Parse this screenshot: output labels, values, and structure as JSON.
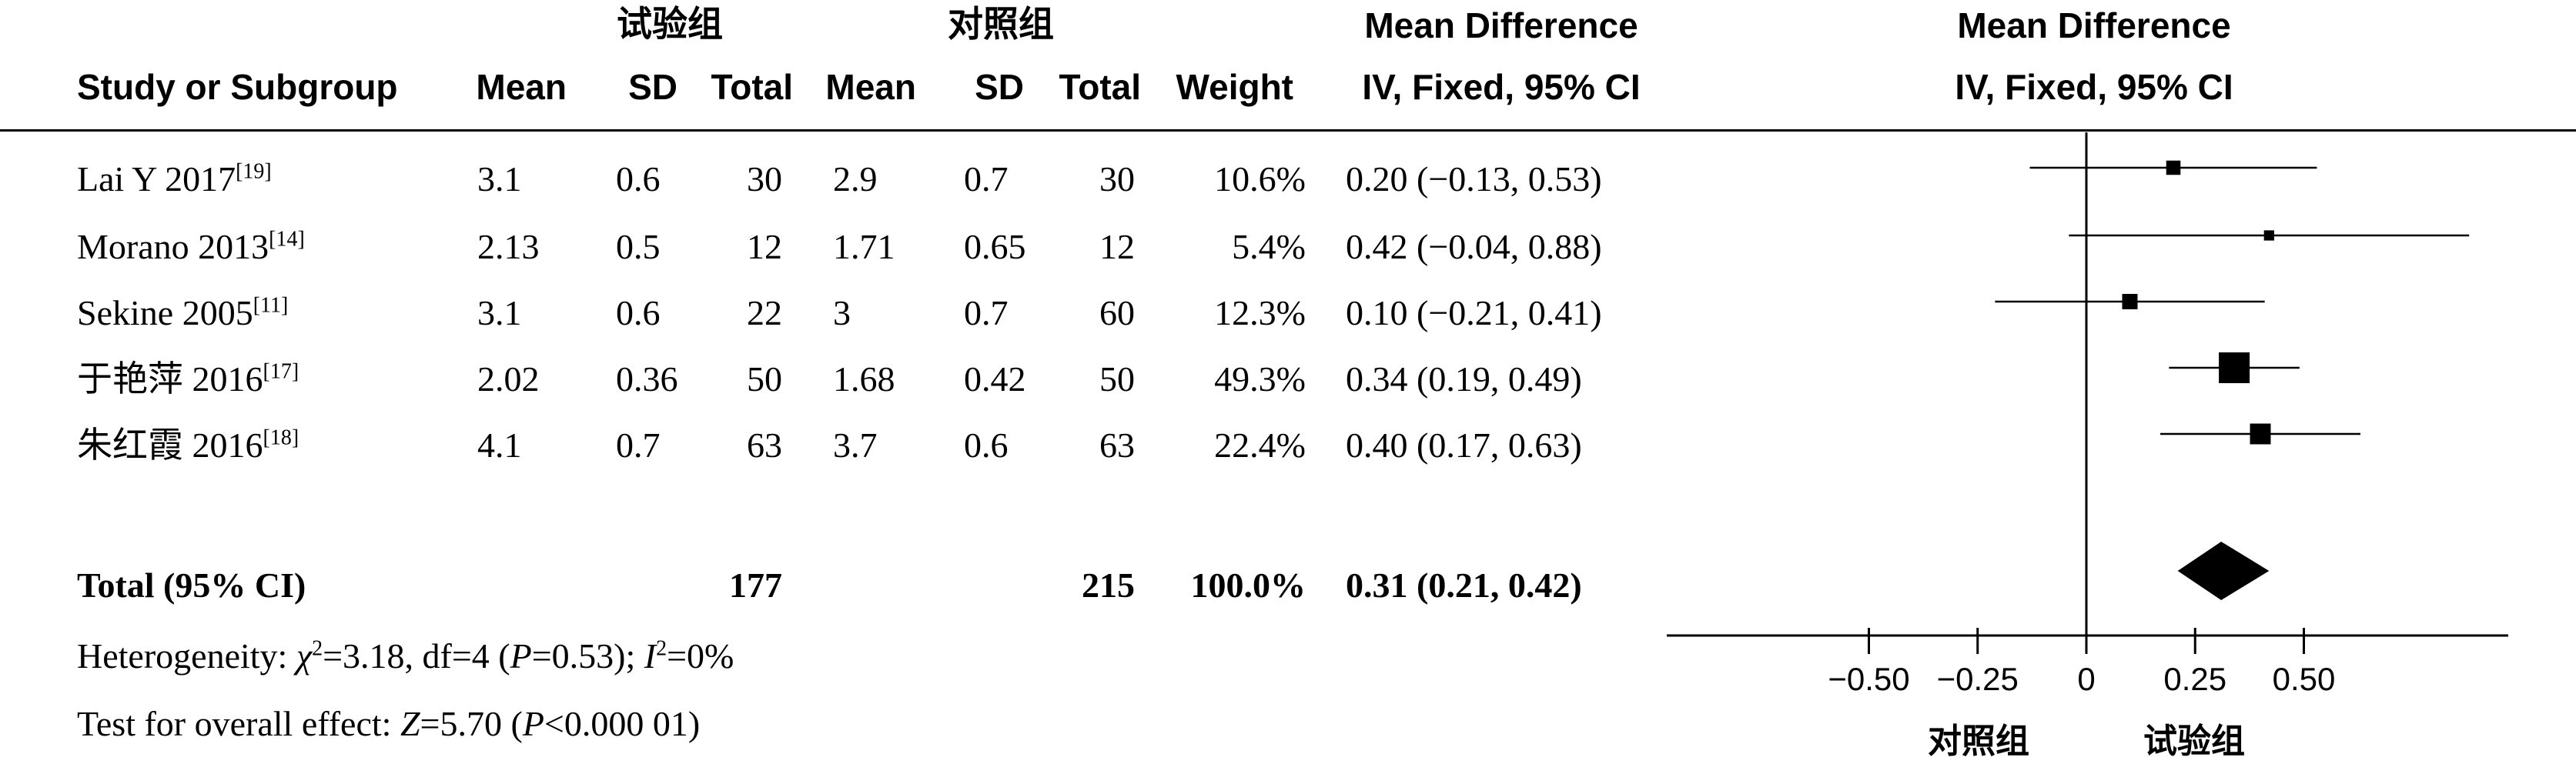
{
  "header": {
    "group_experimental": "试验组",
    "group_control": "对照组",
    "col_study": "Study or Subgroup",
    "col_mean_1": "Mean",
    "col_sd_1": "SD",
    "col_total_1": "Total",
    "col_mean_2": "Mean",
    "col_sd_2": "SD",
    "col_total_2": "Total",
    "col_weight": "Weight",
    "col_md_title": "Mean Difference",
    "col_md_sub": "IV, Fixed, 95% CI",
    "plot_md_title": "Mean Difference",
    "plot_md_sub": "IV, Fixed, 95% CI"
  },
  "studies": [
    {
      "name": "Lai Y 2017",
      "ref": "[19]",
      "mean_e": "3.1",
      "sd_e": "0.6",
      "total_e": "30",
      "mean_c": "2.9",
      "sd_c": "0.7",
      "total_c": "30",
      "weight": "10.6%",
      "ci_text": "0.20 (−0.13, 0.53)"
    },
    {
      "name": "Morano 2013",
      "ref": "[14]",
      "mean_e": "2.13",
      "sd_e": "0.5",
      "total_e": "12",
      "mean_c": "1.71",
      "sd_c": "0.65",
      "total_c": "12",
      "weight": "5.4%",
      "ci_text": "0.42 (−0.04, 0.88)"
    },
    {
      "name": "Sekine 2005",
      "ref": "[11]",
      "mean_e": "3.1",
      "sd_e": "0.6",
      "total_e": "22",
      "mean_c": "3",
      "sd_c": "0.7",
      "total_c": "60",
      "weight": "12.3%",
      "ci_text": "0.10 (−0.21, 0.41)"
    },
    {
      "name": "于艳萍 2016",
      "ref": "[17]",
      "mean_e": "2.02",
      "sd_e": "0.36",
      "total_e": "50",
      "mean_c": "1.68",
      "sd_c": "0.42",
      "total_c": "50",
      "weight": "49.3%",
      "ci_text": "0.34 (0.19, 0.49)"
    },
    {
      "name": "朱红霞 2016",
      "ref": "[18]",
      "mean_e": "4.1",
      "sd_e": "0.7",
      "total_e": "63",
      "mean_c": "3.7",
      "sd_c": "0.6",
      "total_c": "63",
      "weight": "22.4%",
      "ci_text": "0.40 (0.17, 0.63)"
    }
  ],
  "total": {
    "label": "Total (95% CI)",
    "total_e": "177",
    "total_c": "215",
    "weight": "100.0%",
    "ci_text": "0.31 (0.21, 0.42)"
  },
  "footer": {
    "heterogeneity_prefix": "Heterogeneity: ",
    "chi": "χ",
    "chi_sup": "2",
    "chi_rest": "=3.18, df=4 (",
    "p_letter": "P",
    "p_rest": "=0.53); ",
    "i_letter": "I",
    "i_sup": "2",
    "i_rest": "=0%",
    "overall_prefix": "Test for overall effect: ",
    "z_letter": "Z",
    "z_rest": "=5.70 (",
    "p2_letter": "P",
    "p2_rest": "<0.000 01)"
  },
  "axis": {
    "favours_left": "对照组",
    "favours_right": "试验组"
  },
  "chart_data": {
    "type": "forest",
    "xlim": [
      -0.5,
      0.5
    ],
    "x_ticks": [
      -0.5,
      -0.25,
      0,
      0.25,
      0.5
    ],
    "x_tick_labels": [
      "−0.50",
      "−0.25",
      "0",
      "0.25",
      "0.50"
    ],
    "studies": [
      {
        "name": "Lai Y 2017",
        "estimate": 0.2,
        "lower": -0.13,
        "upper": 0.53,
        "weight": 10.6
      },
      {
        "name": "Morano 2013",
        "estimate": 0.42,
        "lower": -0.04,
        "upper": 0.88,
        "weight": 5.4
      },
      {
        "name": "Sekine 2005",
        "estimate": 0.1,
        "lower": -0.21,
        "upper": 0.41,
        "weight": 12.3
      },
      {
        "name": "于艳萍 2016",
        "estimate": 0.34,
        "lower": 0.19,
        "upper": 0.49,
        "weight": 49.3
      },
      {
        "name": "朱红霞 2016",
        "estimate": 0.4,
        "lower": 0.17,
        "upper": 0.63,
        "weight": 22.4
      }
    ],
    "pooled": {
      "estimate": 0.31,
      "lower": 0.21,
      "upper": 0.42
    }
  }
}
